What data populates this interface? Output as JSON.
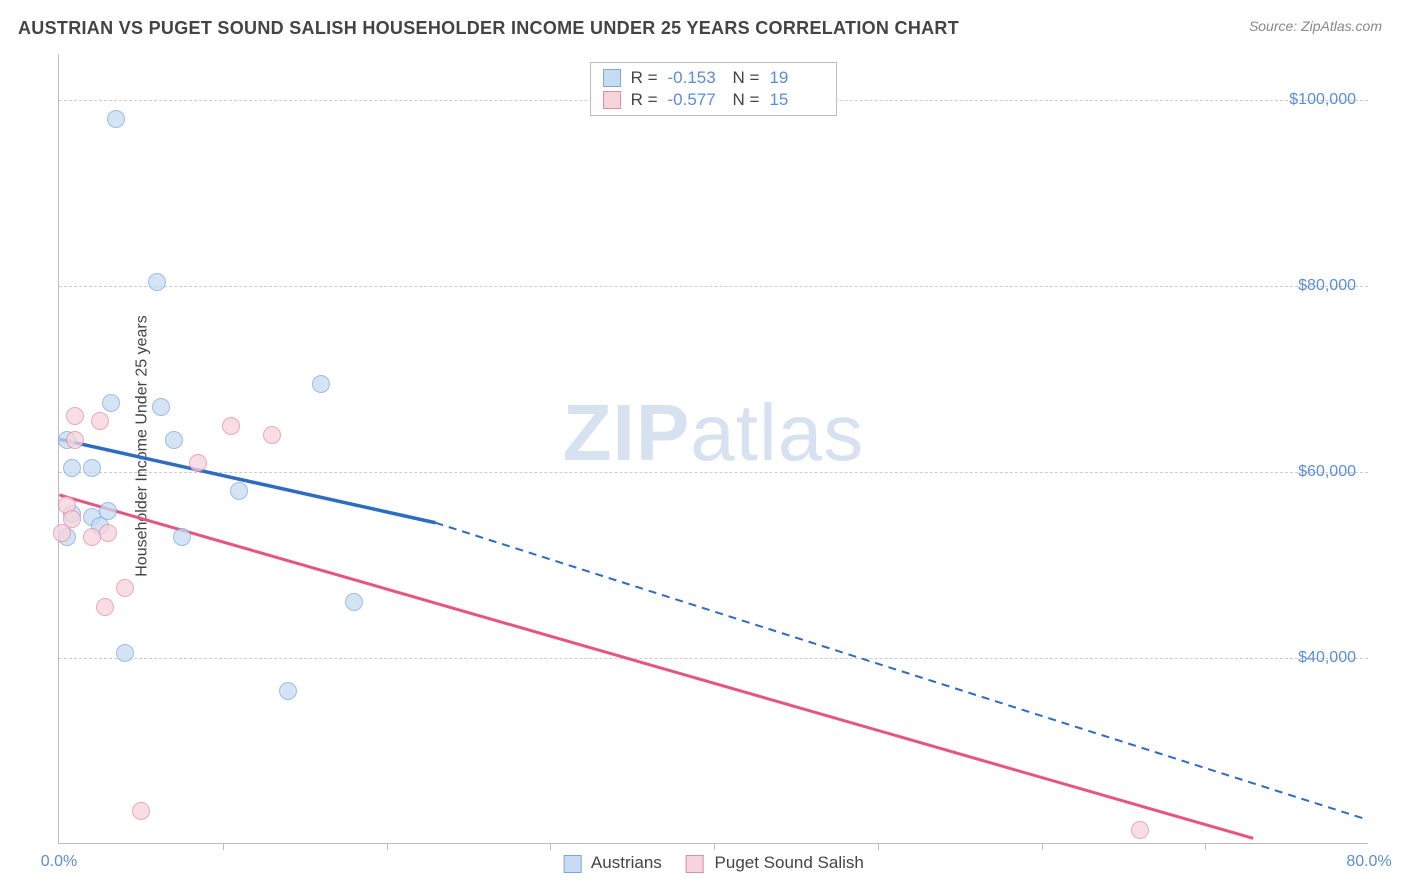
{
  "title": "AUSTRIAN VS PUGET SOUND SALISH HOUSEHOLDER INCOME UNDER 25 YEARS CORRELATION CHART",
  "source": "Source: ZipAtlas.com",
  "ylabel": "Householder Income Under 25 years",
  "watermark_bold": "ZIP",
  "watermark_light": "atlas",
  "chart": {
    "type": "scatter",
    "background_color": "#ffffff",
    "grid_color": "#cccccc",
    "axis_color": "#bbbbbb",
    "tick_label_color": "#5b8dd6",
    "title_fontsize": 18,
    "ylabel_fontsize": 16,
    "tick_fontsize": 16,
    "xlim": [
      0,
      80
    ],
    "ylim": [
      20000,
      105000
    ],
    "ygrid": [
      40000,
      60000,
      80000,
      100000
    ],
    "yticks": [
      {
        "v": 40000,
        "label": "$40,000"
      },
      {
        "v": 60000,
        "label": "$60,000"
      },
      {
        "v": 80000,
        "label": "$80,000"
      },
      {
        "v": 100000,
        "label": "$100,000"
      }
    ],
    "xtick_marks": [
      10,
      20,
      30,
      40,
      50,
      60,
      70
    ],
    "xtick_labels": [
      {
        "v": 0,
        "label": "0.0%"
      },
      {
        "v": 80,
        "label": "80.0%"
      }
    ]
  },
  "series": [
    {
      "name": "Austrians",
      "color_fill": "#c7dbf2",
      "color_stroke": "#7aa8de",
      "line_color": "#2d6cc0",
      "marker_radius": 9,
      "opacity": 0.75,
      "R": "-0.153",
      "N": "19",
      "points": [
        {
          "x": 3.5,
          "y": 98000
        },
        {
          "x": 6.0,
          "y": 80500
        },
        {
          "x": 3.2,
          "y": 67500
        },
        {
          "x": 6.2,
          "y": 67000
        },
        {
          "x": 16.0,
          "y": 69500
        },
        {
          "x": 7.0,
          "y": 63500
        },
        {
          "x": 2.0,
          "y": 60500
        },
        {
          "x": 0.8,
          "y": 60500
        },
        {
          "x": 11.0,
          "y": 58000
        },
        {
          "x": 0.8,
          "y": 55500
        },
        {
          "x": 2.0,
          "y": 55200
        },
        {
          "x": 3.0,
          "y": 55800
        },
        {
          "x": 0.5,
          "y": 53000
        },
        {
          "x": 2.5,
          "y": 54200
        },
        {
          "x": 7.5,
          "y": 53000
        },
        {
          "x": 18.0,
          "y": 46000
        },
        {
          "x": 4.0,
          "y": 40500
        },
        {
          "x": 14.0,
          "y": 36500
        },
        {
          "x": 0.5,
          "y": 63500
        }
      ],
      "trend": {
        "x1": 0,
        "y1": 63500,
        "x2": 23,
        "y2": 54500,
        "dash_to_x": 80,
        "dash_to_y": 22500
      }
    },
    {
      "name": "Puget Sound Salish",
      "color_fill": "#f6d4dc",
      "color_stroke": "#e48ba4",
      "line_color": "#e8557c",
      "marker_radius": 9,
      "opacity": 0.75,
      "R": "-0.577",
      "N": "15",
      "points": [
        {
          "x": 1.0,
          "y": 66000
        },
        {
          "x": 2.5,
          "y": 65500
        },
        {
          "x": 1.0,
          "y": 63500
        },
        {
          "x": 10.5,
          "y": 65000
        },
        {
          "x": 13.0,
          "y": 64000
        },
        {
          "x": 8.5,
          "y": 61000
        },
        {
          "x": 0.5,
          "y": 56500
        },
        {
          "x": 0.8,
          "y": 55000
        },
        {
          "x": 3.0,
          "y": 53500
        },
        {
          "x": 2.0,
          "y": 53000
        },
        {
          "x": 0.2,
          "y": 53500
        },
        {
          "x": 4.0,
          "y": 47500
        },
        {
          "x": 2.8,
          "y": 45500
        },
        {
          "x": 5.0,
          "y": 23500
        },
        {
          "x": 66.0,
          "y": 21500
        }
      ],
      "trend": {
        "x1": 0,
        "y1": 57500,
        "x2": 73,
        "y2": 20500
      }
    }
  ],
  "legend": {
    "items": [
      {
        "label": "Austrians",
        "fill": "#c7dbf2",
        "stroke": "#7aa8de"
      },
      {
        "label": "Puget Sound Salish",
        "fill": "#f6d4dc",
        "stroke": "#e48ba4"
      }
    ]
  }
}
